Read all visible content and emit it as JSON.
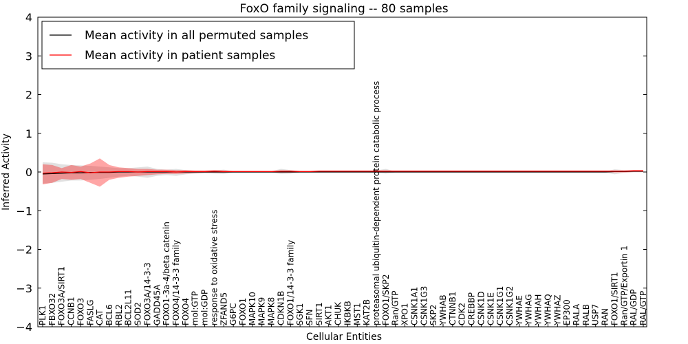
{
  "chart_data": {
    "type": "line",
    "title": "FoxO family signaling -- 80 samples",
    "xlabel": "Cellular Entities",
    "ylabel": "Inferred Activity",
    "ylim": [
      -4,
      4
    ],
    "yticks": [
      "−4",
      "−3",
      "−2",
      "−1",
      "0",
      "1",
      "2",
      "3",
      "4"
    ],
    "legend_position": "upper-left",
    "categories": [
      "PLK1",
      "FBXO32",
      "FOXO3A/SIRT1",
      "CCNB1",
      "FOXO3",
      "FASLG",
      "CAT",
      "BCL6",
      "RBL2",
      "BCL2L11",
      "SOD2",
      "FOXO3A/14-3-3",
      "GADD45A",
      "FOXO1-3a-4/beta catenin",
      "FOXO4/14-3-3 family",
      "FOXO4",
      "mol:GTP",
      "mol:GDP",
      "response to oxidative stress",
      "ZFAND5",
      "G6PC",
      "FOXO1",
      "MAPK10",
      "MAPK9",
      "MAPK8",
      "CDKN1B",
      "FOXO1/14-3-3 family",
      "SGK1",
      "SFN",
      "SIRT1",
      "AKT1",
      "CHUK",
      "IKBKB",
      "MST1",
      "KAT2B",
      "proteasomal ubiquitin-dependent protein catabolic process",
      "FOXO1/SKP2",
      "Ran/GTP",
      "XPO1",
      "CSNK1A1",
      "CSNK1G3",
      "SKP2",
      "YWHAB",
      "CTNNB1",
      "CDK2",
      "CREBBP",
      "CSNK1D",
      "CSNK1E",
      "CSNK1G1",
      "CSNK1G2",
      "YWHAE",
      "YWHAG",
      "YWHAH",
      "YWHAQ",
      "YWHAZ",
      "EP300",
      "RALA",
      "RALB",
      "USP7",
      "RAN",
      "FOXO1/SIRT1",
      "Ran/GTP/Exportin 1",
      "RAL/GDP",
      "RAL/GTP"
    ],
    "series": [
      {
        "name": "Mean activity in all permuted samples",
        "color": "#000000",
        "values": [
          -0.05,
          -0.04,
          -0.03,
          -0.02,
          -0.02,
          -0.01,
          -0.01,
          -0.01,
          0.0,
          0.0,
          0.0,
          0.0,
          0.0,
          0.0,
          0.0,
          0.0,
          0.0,
          0.0,
          0.0,
          0.0,
          0.0,
          0.0,
          0.0,
          0.0,
          0.0,
          0.0,
          0.0,
          0.0,
          0.0,
          0.0,
          0.0,
          0.0,
          0.0,
          0.0,
          0.0,
          0.0,
          0.0,
          0.0,
          0.0,
          0.0,
          0.0,
          0.0,
          0.0,
          0.0,
          0.0,
          0.0,
          0.0,
          0.0,
          0.0,
          0.0,
          0.0,
          0.0,
          0.0,
          0.0,
          0.0,
          0.0,
          0.0,
          0.0,
          0.0,
          0.0,
          0.01,
          0.01,
          0.02,
          0.02
        ],
        "band_lower": [
          -0.3,
          -0.28,
          -0.25,
          -0.22,
          -0.22,
          -0.2,
          -0.18,
          -0.15,
          -0.12,
          -0.1,
          -0.12,
          -0.15,
          -0.1,
          -0.08,
          -0.1,
          -0.06,
          -0.04,
          -0.03,
          -0.04,
          -0.05,
          -0.02,
          -0.02,
          -0.02,
          -0.02,
          -0.02,
          -0.05,
          -0.04,
          -0.01,
          -0.01,
          -0.01,
          -0.01,
          -0.01,
          -0.01,
          -0.01,
          -0.01,
          -0.02,
          -0.04,
          -0.01,
          -0.01,
          -0.01,
          -0.01,
          -0.01,
          -0.01,
          -0.01,
          -0.01,
          -0.01,
          -0.01,
          -0.01,
          -0.01,
          -0.01,
          -0.01,
          -0.01,
          -0.01,
          -0.01,
          -0.01,
          -0.01,
          -0.01,
          -0.01,
          -0.01,
          -0.01,
          -0.06,
          -0.02,
          -0.01,
          -0.01
        ],
        "band_upper": [
          0.25,
          0.24,
          0.2,
          0.18,
          0.17,
          0.16,
          0.14,
          0.12,
          0.1,
          0.1,
          0.12,
          0.14,
          0.08,
          0.06,
          0.08,
          0.05,
          0.03,
          0.03,
          0.04,
          0.06,
          0.02,
          0.02,
          0.02,
          0.02,
          0.02,
          0.08,
          0.05,
          0.02,
          0.01,
          0.01,
          0.01,
          0.01,
          0.01,
          0.01,
          0.01,
          0.04,
          0.08,
          0.01,
          0.01,
          0.01,
          0.01,
          0.01,
          0.01,
          0.01,
          0.01,
          0.01,
          0.01,
          0.01,
          0.01,
          0.01,
          0.01,
          0.01,
          0.01,
          0.01,
          0.01,
          0.01,
          0.01,
          0.01,
          0.01,
          0.01,
          0.07,
          0.05,
          0.05,
          0.05
        ]
      },
      {
        "name": "Mean activity in patient samples",
        "color": "#ff0000",
        "values": [
          -0.03,
          -0.02,
          0.0,
          -0.01,
          0.01,
          -0.02,
          0.0,
          0.0,
          0.01,
          0.01,
          0.0,
          0.01,
          0.01,
          0.01,
          0.0,
          0.01,
          0.01,
          0.01,
          0.02,
          0.01,
          0.01,
          0.01,
          0.01,
          0.01,
          0.01,
          0.02,
          0.02,
          0.01,
          0.01,
          0.02,
          0.02,
          0.02,
          0.02,
          0.02,
          0.02,
          0.02,
          0.02,
          0.02,
          0.02,
          0.02,
          0.02,
          0.02,
          0.02,
          0.02,
          0.02,
          0.02,
          0.02,
          0.02,
          0.02,
          0.02,
          0.02,
          0.02,
          0.02,
          0.02,
          0.02,
          0.02,
          0.02,
          0.02,
          0.02,
          0.02,
          0.02,
          0.02,
          0.03,
          0.03
        ],
        "band_lower": [
          -0.32,
          -0.28,
          -0.18,
          -0.2,
          -0.18,
          -0.28,
          -0.38,
          -0.2,
          -0.15,
          -0.12,
          -0.1,
          -0.08,
          -0.06,
          -0.05,
          -0.05,
          -0.04,
          -0.03,
          -0.02,
          -0.02,
          -0.02,
          -0.01,
          -0.01,
          -0.01,
          -0.01,
          -0.01,
          -0.02,
          -0.02,
          -0.01,
          -0.01,
          -0.01,
          -0.01,
          -0.01,
          -0.01,
          -0.01,
          -0.01,
          -0.01,
          -0.01,
          -0.01,
          -0.01,
          -0.01,
          -0.01,
          -0.01,
          -0.01,
          -0.01,
          -0.01,
          -0.01,
          -0.01,
          -0.01,
          -0.01,
          -0.01,
          -0.01,
          -0.01,
          -0.01,
          -0.01,
          -0.01,
          -0.01,
          -0.01,
          -0.01,
          -0.01,
          -0.01,
          -0.01,
          -0.01,
          0.0,
          0.0
        ],
        "band_upper": [
          0.2,
          0.18,
          0.1,
          0.18,
          0.14,
          0.22,
          0.35,
          0.18,
          0.12,
          0.1,
          0.08,
          0.08,
          0.06,
          0.06,
          0.05,
          0.05,
          0.04,
          0.04,
          0.05,
          0.04,
          0.03,
          0.03,
          0.03,
          0.03,
          0.03,
          0.04,
          0.04,
          0.03,
          0.03,
          0.04,
          0.04,
          0.04,
          0.04,
          0.04,
          0.04,
          0.04,
          0.04,
          0.04,
          0.04,
          0.04,
          0.04,
          0.04,
          0.04,
          0.04,
          0.04,
          0.04,
          0.04,
          0.04,
          0.04,
          0.04,
          0.04,
          0.04,
          0.04,
          0.04,
          0.04,
          0.04,
          0.04,
          0.04,
          0.04,
          0.04,
          0.04,
          0.04,
          0.05,
          0.05
        ]
      }
    ]
  }
}
